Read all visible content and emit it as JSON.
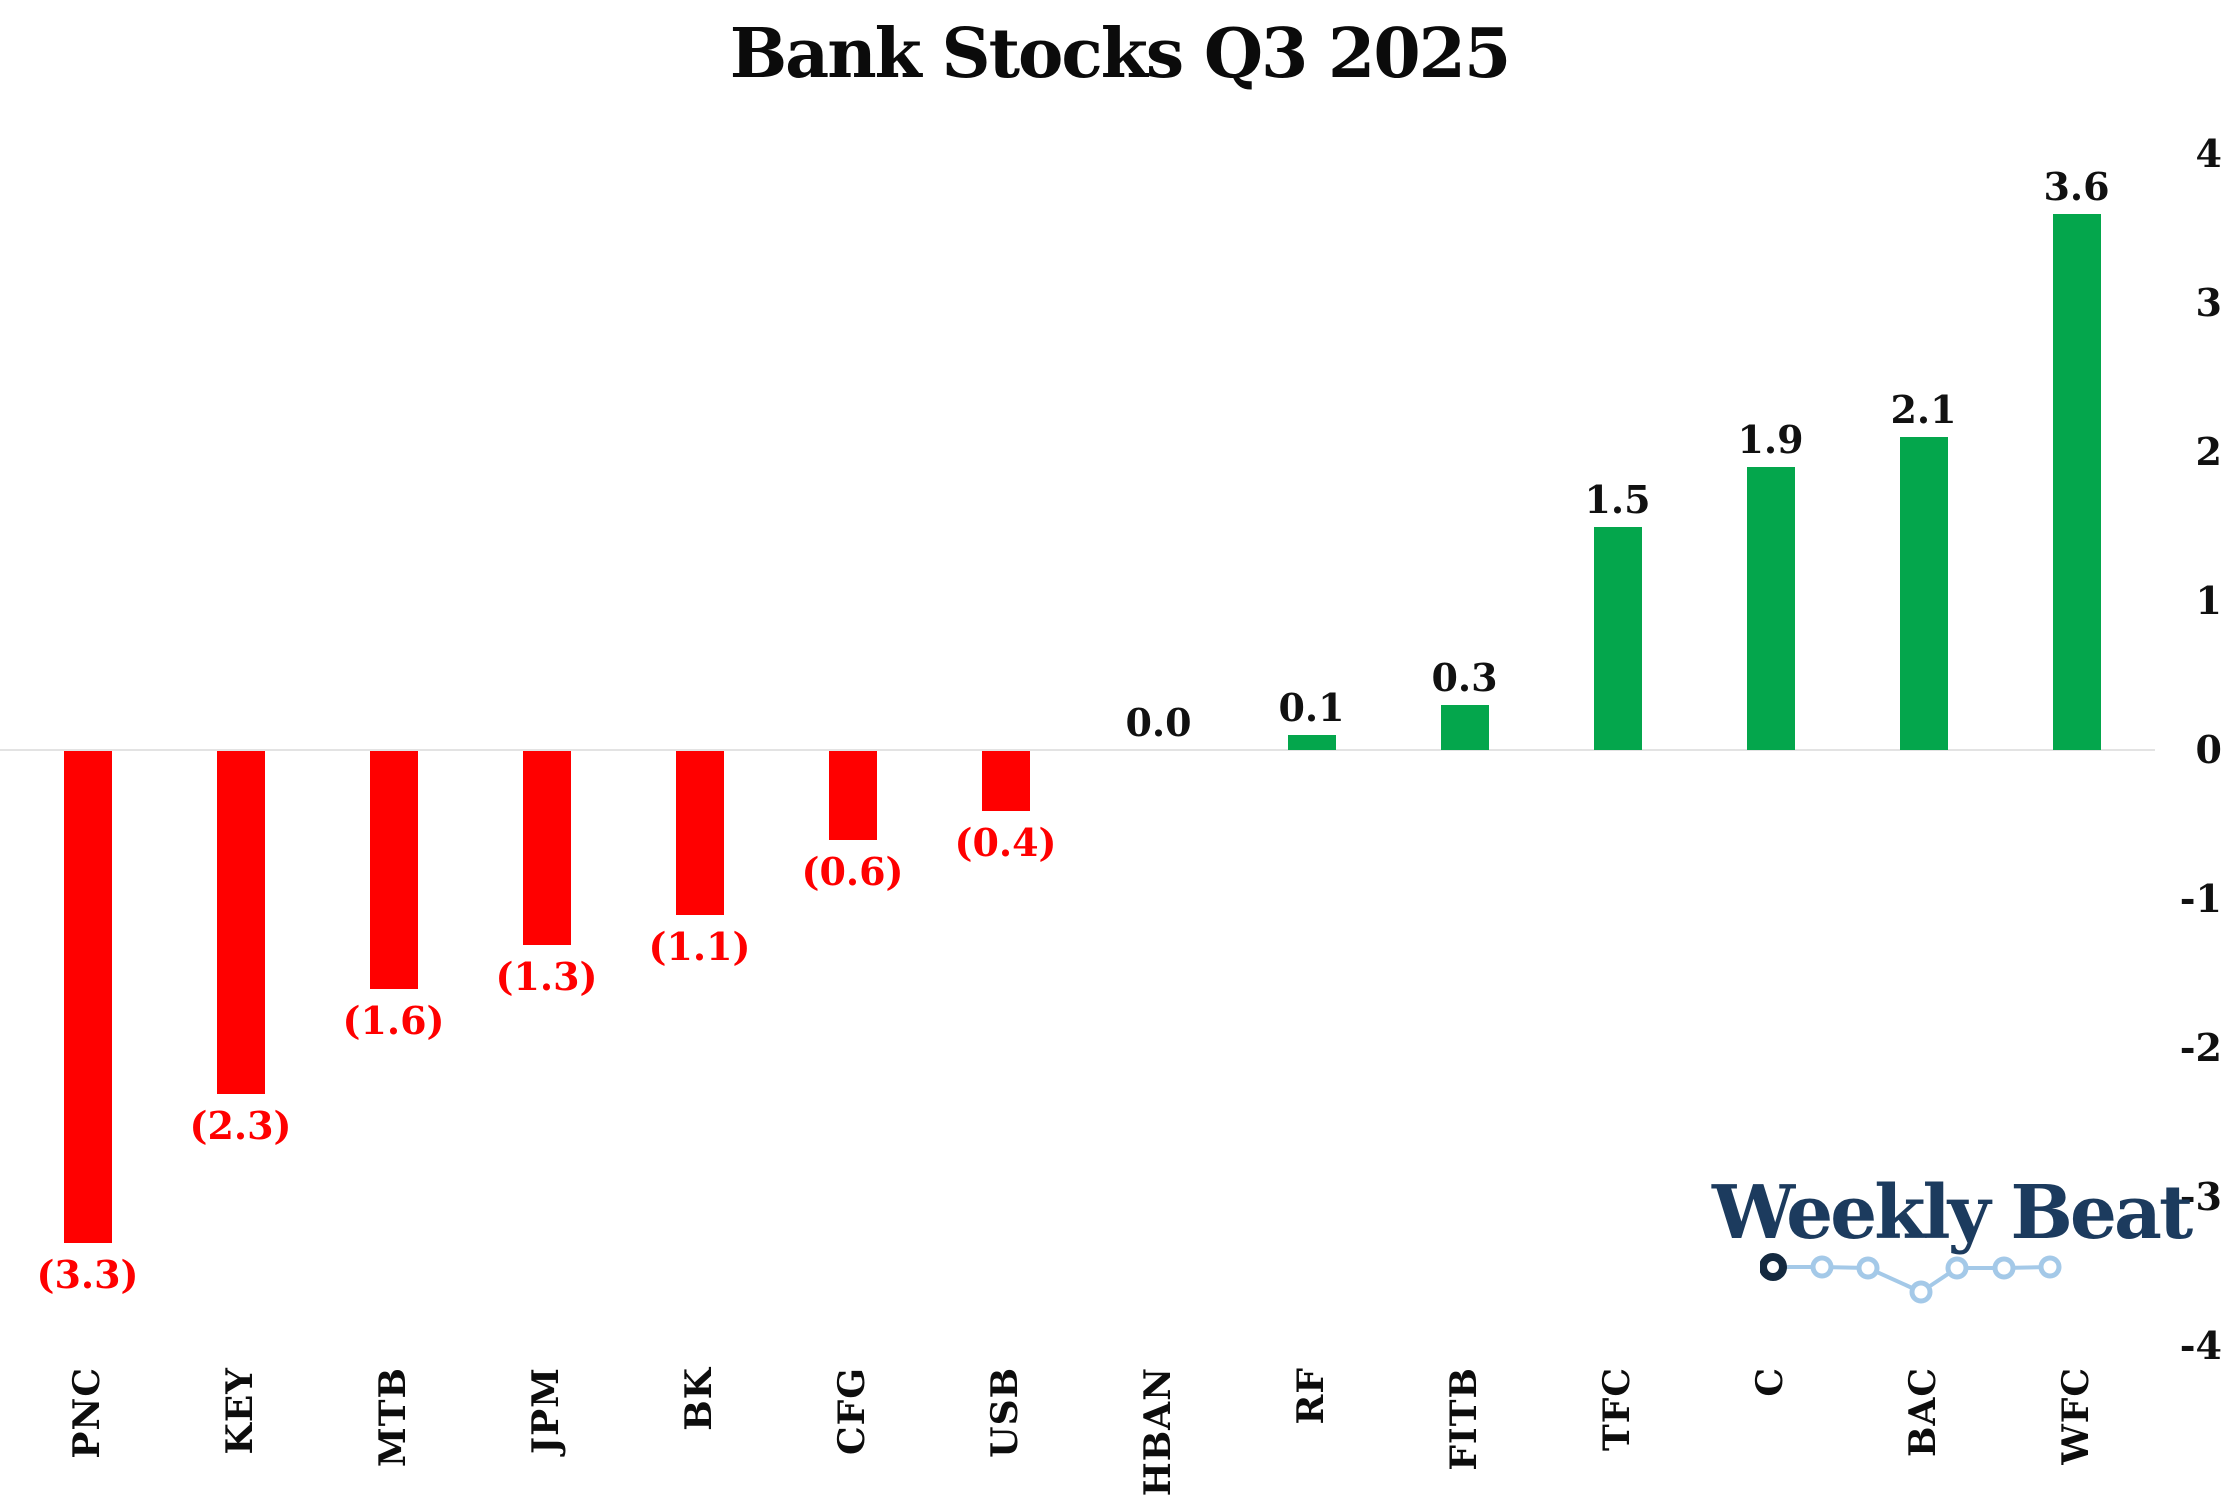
{
  "title": "Bank Stocks Q3 2025",
  "logo": {
    "text": "Weekly Beat"
  },
  "chart_data": {
    "type": "bar",
    "title": "Bank Stocks Q3 2025",
    "categories": [
      "PNC",
      "KEY",
      "MTB",
      "JPM",
      "BK",
      "CFG",
      "USB",
      "HBAN",
      "RF",
      "FITB",
      "TFC",
      "C",
      "BAC",
      "WFC"
    ],
    "values": [
      -3.3,
      -2.3,
      -1.6,
      -1.3,
      -1.1,
      -0.6,
      -0.4,
      0.0,
      0.1,
      0.3,
      1.5,
      1.9,
      2.1,
      3.6
    ],
    "bar_labels": [
      "(3.3)",
      "(2.3)",
      "(1.6)",
      "(1.3)",
      "(1.1)",
      "(0.6)",
      "(0.4)",
      "0.0",
      "0.1",
      "0.3",
      "1.5",
      "1.9",
      "2.1",
      "3.6"
    ],
    "xlabel": "",
    "ylabel": "",
    "ylim": [
      -4,
      4
    ],
    "yticks": [
      4,
      3,
      2,
      1,
      0,
      -1,
      -2,
      -3,
      -4
    ],
    "yticklabels": [
      "4",
      "3",
      "2",
      "1",
      "0",
      "-1",
      "-2",
      "-3",
      "-4"
    ],
    "yaxis_side": "right",
    "grid": false,
    "legend": null,
    "colors": {
      "positive_bar": "#04a64c",
      "negative_bar": "#ff0000",
      "positive_label": "#111111",
      "negative_label": "#ff0000",
      "axis_line": "#e3e3e3",
      "logo_navy": "#1c3b5e",
      "logo_light_blue": "#a4c9e8"
    }
  }
}
